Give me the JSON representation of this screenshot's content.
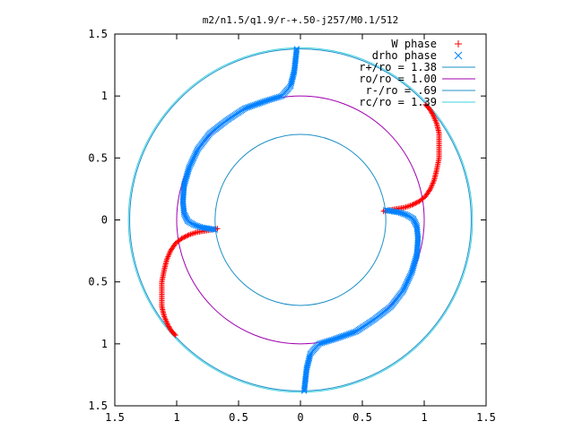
{
  "chart_data": {
    "type": "scatter",
    "title": "m2/n1.5/q1.9/r-+.50-j257/M0.1/512",
    "xlim": [
      -1.5,
      1.5
    ],
    "ylim": [
      -1.5,
      1.5
    ],
    "xticks": [
      -1.5,
      -1,
      -0.5,
      0,
      0.5,
      1,
      1.5
    ],
    "yticks": [
      -1.5,
      -1,
      -0.5,
      0,
      0.5,
      1,
      1.5
    ],
    "xtick_labels": [
      "1.5",
      "1",
      "0.5",
      "0",
      "0.5",
      "1",
      "1.5"
    ],
    "ytick_labels": [
      "1.5",
      "1",
      "0.5",
      "0",
      "0.5",
      "1",
      "1.5"
    ],
    "grid": false,
    "legend_position": "top-right",
    "series": [
      {
        "name": "W phase",
        "kind": "points",
        "marker": "plus",
        "color": "#ff0000"
      },
      {
        "name": "drho phase",
        "kind": "points",
        "marker": "cross",
        "color": "#0080ff"
      },
      {
        "name": "r+/ro = 1.38",
        "kind": "circle",
        "radius": 1.38,
        "color": "#1e90c8"
      },
      {
        "name": "ro/ro = 1.00",
        "kind": "circle",
        "radius": 1.0,
        "color": "#a000b0"
      },
      {
        "name": "r-/ro = .69",
        "kind": "circle",
        "radius": 0.69,
        "color": "#1e90c8"
      },
      {
        "name": "rc/ro = 1.39",
        "kind": "circle",
        "radius": 1.39,
        "color": "#40d0e0"
      }
    ],
    "arms": {
      "W phase": [
        {
          "x": 0.67,
          "y": 0.07
        },
        {
          "x": 0.72,
          "y": 0.08
        },
        {
          "x": 0.78,
          "y": 0.09
        },
        {
          "x": 0.84,
          "y": 0.1
        },
        {
          "x": 0.9,
          "y": 0.12
        },
        {
          "x": 0.96,
          "y": 0.15
        },
        {
          "x": 1.01,
          "y": 0.19
        },
        {
          "x": 1.05,
          "y": 0.25
        },
        {
          "x": 1.08,
          "y": 0.32
        },
        {
          "x": 1.1,
          "y": 0.4
        },
        {
          "x": 1.12,
          "y": 0.5
        },
        {
          "x": 1.12,
          "y": 0.6
        },
        {
          "x": 1.12,
          "y": 0.7
        },
        {
          "x": 1.1,
          "y": 0.78
        },
        {
          "x": 1.07,
          "y": 0.85
        },
        {
          "x": 1.04,
          "y": 0.9
        },
        {
          "x": 1.01,
          "y": 0.93
        }
      ],
      "drho phase": [
        {
          "x": 0.69,
          "y": 0.08
        },
        {
          "x": 0.74,
          "y": 0.07
        },
        {
          "x": 0.8,
          "y": 0.06
        },
        {
          "x": 0.86,
          "y": 0.04
        },
        {
          "x": 0.91,
          "y": 0.01
        },
        {
          "x": 0.94,
          "y": -0.05
        },
        {
          "x": 0.95,
          "y": -0.15
        },
        {
          "x": 0.94,
          "y": -0.28
        },
        {
          "x": 0.9,
          "y": -0.42
        },
        {
          "x": 0.83,
          "y": -0.57
        },
        {
          "x": 0.73,
          "y": -0.7
        },
        {
          "x": 0.6,
          "y": -0.8
        },
        {
          "x": 0.45,
          "y": -0.9
        },
        {
          "x": 0.28,
          "y": -0.96
        },
        {
          "x": 0.15,
          "y": -1.0
        },
        {
          "x": 0.08,
          "y": -1.08
        },
        {
          "x": 0.05,
          "y": -1.2
        },
        {
          "x": 0.03,
          "y": -1.38
        }
      ]
    }
  }
}
